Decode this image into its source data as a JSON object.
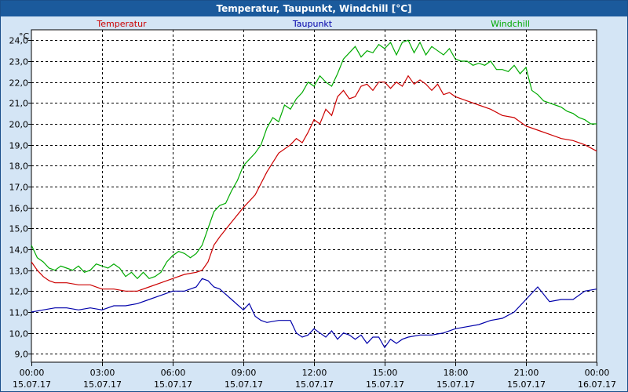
{
  "window": {
    "title": "Temperatur, Taupunkt, Windchill [°C]"
  },
  "chart_data": {
    "type": "line",
    "title": "Temperatur, Taupunkt, Windchill [°C]",
    "ylabel": "°C",
    "ylim": [
      8.6,
      24.5
    ],
    "yticks": [
      "24,0",
      "23,0",
      "22,0",
      "21,0",
      "20,0",
      "19,0",
      "18,0",
      "17,0",
      "16,0",
      "15,0",
      "14,0",
      "13,0",
      "12,0",
      "11,0",
      "10,0",
      "9,0"
    ],
    "ytick_values": [
      24,
      23,
      22,
      21,
      20,
      19,
      18,
      17,
      16,
      15,
      14,
      13,
      12,
      11,
      10,
      9
    ],
    "xlim": [
      0,
      24
    ],
    "xticks": [
      {
        "h": 0,
        "time": "00:00",
        "date": "15.07.17"
      },
      {
        "h": 3,
        "time": "03:00",
        "date": "15.07.17"
      },
      {
        "h": 6,
        "time": "06:00",
        "date": "15.07.17"
      },
      {
        "h": 9,
        "time": "09:00",
        "date": "15.07.17"
      },
      {
        "h": 12,
        "time": "12:00",
        "date": "15.07.17"
      },
      {
        "h": 15,
        "time": "15:00",
        "date": "15.07.17"
      },
      {
        "h": 18,
        "time": "18:00",
        "date": "15.07.17"
      },
      {
        "h": 21,
        "time": "21:00",
        "date": "15.07.17"
      },
      {
        "h": 24,
        "time": "00:00",
        "date": "16.07.17"
      }
    ],
    "grid": true,
    "legend_position": "top",
    "series": [
      {
        "name": "Temperatur",
        "color": "#cc0000",
        "x": [
          0,
          0.25,
          0.5,
          0.75,
          1,
          1.5,
          2,
          2.5,
          3,
          3.5,
          4,
          4.5,
          5,
          5.5,
          6,
          6.5,
          7,
          7.25,
          7.5,
          7.75,
          8,
          8.5,
          9,
          9.5,
          10,
          10.5,
          11,
          11.25,
          11.5,
          11.75,
          12,
          12.25,
          12.5,
          12.75,
          13,
          13.25,
          13.5,
          13.75,
          14,
          14.25,
          14.5,
          14.75,
          15,
          15.25,
          15.5,
          15.75,
          16,
          16.25,
          16.5,
          16.75,
          17,
          17.25,
          17.5,
          17.75,
          18,
          18.5,
          19,
          19.5,
          20,
          20.5,
          21,
          21.5,
          22,
          22.5,
          23,
          23.5,
          24
        ],
        "y": [
          13.4,
          13.0,
          12.7,
          12.5,
          12.4,
          12.4,
          12.3,
          12.3,
          12.1,
          12.1,
          12.0,
          12.0,
          12.2,
          12.4,
          12.6,
          12.8,
          12.9,
          13.0,
          13.4,
          14.2,
          14.6,
          15.3,
          16.0,
          16.6,
          17.7,
          18.6,
          19.0,
          19.3,
          19.1,
          19.6,
          20.2,
          20.0,
          20.7,
          20.4,
          21.3,
          21.6,
          21.2,
          21.3,
          21.8,
          21.9,
          21.6,
          22.0,
          22.0,
          21.7,
          22.0,
          21.8,
          22.3,
          21.9,
          22.1,
          21.9,
          21.6,
          21.9,
          21.4,
          21.5,
          21.3,
          21.1,
          20.9,
          20.7,
          20.4,
          20.3,
          19.9,
          19.7,
          19.5,
          19.3,
          19.2,
          19.0,
          18.7
        ]
      },
      {
        "name": "Taupunkt",
        "color": "#0000aa",
        "x": [
          0,
          0.5,
          1,
          1.5,
          2,
          2.5,
          3,
          3.5,
          4,
          4.5,
          5,
          5.5,
          6,
          6.5,
          7,
          7.25,
          7.5,
          7.75,
          8,
          8.5,
          9,
          9.25,
          9.5,
          9.75,
          10,
          10.5,
          11,
          11.25,
          11.5,
          11.75,
          12,
          12.25,
          12.5,
          12.75,
          13,
          13.25,
          13.5,
          13.75,
          14,
          14.25,
          14.5,
          14.75,
          15,
          15.25,
          15.5,
          15.75,
          16,
          16.5,
          17,
          17.5,
          18,
          18.5,
          19,
          19.5,
          20,
          20.5,
          21,
          21.5,
          22,
          22.5,
          23,
          23.5,
          24
        ],
        "y": [
          11.0,
          11.1,
          11.2,
          11.2,
          11.1,
          11.2,
          11.1,
          11.3,
          11.3,
          11.4,
          11.6,
          11.8,
          12.0,
          12.0,
          12.2,
          12.6,
          12.5,
          12.2,
          12.1,
          11.6,
          11.1,
          11.4,
          10.8,
          10.6,
          10.5,
          10.6,
          10.6,
          10.0,
          9.8,
          9.9,
          10.2,
          10.0,
          9.8,
          10.1,
          9.7,
          10.0,
          9.9,
          9.7,
          9.9,
          9.5,
          9.8,
          9.8,
          9.3,
          9.7,
          9.5,
          9.7,
          9.8,
          9.9,
          9.9,
          10.0,
          10.2,
          10.3,
          10.4,
          10.6,
          10.7,
          11.0,
          11.6,
          12.2,
          11.5,
          11.6,
          11.6,
          12.0,
          12.1
        ]
      },
      {
        "name": "Windchill",
        "color": "#00aa00",
        "x": [
          0,
          0.25,
          0.5,
          0.75,
          1,
          1.25,
          1.5,
          1.75,
          2,
          2.25,
          2.5,
          2.75,
          3,
          3.25,
          3.5,
          3.75,
          4,
          4.25,
          4.5,
          4.75,
          5,
          5.25,
          5.5,
          5.75,
          6,
          6.25,
          6.5,
          6.75,
          7,
          7.25,
          7.5,
          7.75,
          8,
          8.25,
          8.5,
          8.75,
          9,
          9.25,
          9.5,
          9.75,
          10,
          10.25,
          10.5,
          10.75,
          11,
          11.25,
          11.5,
          11.75,
          12,
          12.25,
          12.5,
          12.75,
          13,
          13.25,
          13.5,
          13.75,
          14,
          14.25,
          14.5,
          14.75,
          15,
          15.25,
          15.5,
          15.75,
          16,
          16.25,
          16.5,
          16.75,
          17,
          17.25,
          17.5,
          17.75,
          18,
          18.25,
          18.5,
          18.75,
          19,
          19.25,
          19.5,
          19.75,
          20,
          20.25,
          20.5,
          20.75,
          21,
          21.25,
          21.5,
          21.75,
          22,
          22.25,
          22.5,
          22.75,
          23,
          23.25,
          23.5,
          23.75,
          24
        ],
        "y": [
          14.2,
          13.6,
          13.4,
          13.1,
          13.0,
          13.2,
          13.1,
          13.0,
          13.2,
          12.9,
          13.0,
          13.3,
          13.2,
          13.1,
          13.3,
          13.1,
          12.7,
          12.9,
          12.6,
          12.9,
          12.6,
          12.7,
          12.9,
          13.4,
          13.7,
          13.9,
          13.8,
          13.6,
          13.8,
          14.2,
          15.0,
          15.8,
          16.1,
          16.2,
          16.8,
          17.3,
          18.0,
          18.3,
          18.6,
          19.0,
          19.8,
          20.3,
          20.1,
          20.9,
          20.7,
          21.2,
          21.5,
          22.0,
          21.8,
          22.3,
          22.0,
          21.8,
          22.4,
          23.1,
          23.4,
          23.7,
          23.2,
          23.5,
          23.4,
          23.8,
          23.6,
          23.9,
          23.3,
          23.9,
          24.0,
          23.4,
          23.9,
          23.3,
          23.7,
          23.5,
          23.3,
          23.6,
          23.1,
          23.0,
          23.0,
          22.8,
          22.9,
          22.8,
          23.0,
          22.6,
          22.6,
          22.5,
          22.8,
          22.4,
          22.7,
          21.6,
          21.4,
          21.1,
          21.0,
          20.9,
          20.8,
          20.6,
          20.5,
          20.3,
          20.2,
          20.0,
          20.0
        ]
      }
    ]
  }
}
